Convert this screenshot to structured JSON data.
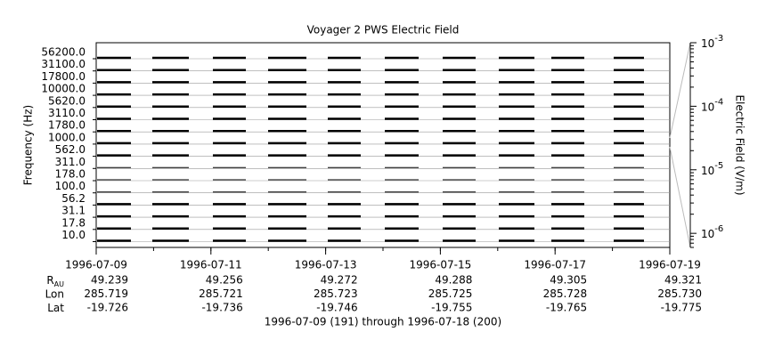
{
  "chart_data": {
    "type": "spectrum-channels",
    "title": "Voyager 2 PWS Electric Field",
    "ylabel": "Frequency (Hz)",
    "categories": [
      "56200.0",
      "31100.0",
      "17800.0",
      "10000.0",
      "5620.0",
      "3110.0",
      "1780.0",
      "1000.0",
      "562.0",
      "311.0",
      "178.0",
      "100.0",
      "56.2",
      "31.1",
      "17.8",
      "10.0"
    ],
    "xlim": [
      "1996-07-09",
      "1996-07-19"
    ],
    "xticks": [
      "1996-07-09",
      "1996-07-11",
      "1996-07-13",
      "1996-07-15",
      "1996-07-17",
      "1996-07-19"
    ],
    "y2label": "Electric Field (V/m)",
    "y2lim": [
      6e-07,
      0.001
    ],
    "y2log": true,
    "y2ticks": [
      {
        "value": 0.001,
        "label": "10",
        "exponent": "-3"
      },
      {
        "value": 0.0001,
        "label": "10",
        "exponent": "-4"
      },
      {
        "value": 1e-05,
        "label": "10",
        "exponent": "-5"
      },
      {
        "value": 1e-06,
        "label": "10",
        "exponent": "-6"
      }
    ],
    "ephemeris": [
      {
        "label": "R",
        "sub": "AU",
        "values": [
          "49.239",
          "49.256",
          "49.272",
          "49.288",
          "49.305",
          "49.321"
        ]
      },
      {
        "label": "Lon",
        "values": [
          "285.719",
          "285.721",
          "285.723",
          "285.725",
          "285.728",
          "285.730"
        ]
      },
      {
        "label": "Lat",
        "values": [
          "-19.726",
          "-19.736",
          "-19.746",
          "-19.755",
          "-19.765",
          "-19.775"
        ]
      }
    ],
    "footer": "1996-07-09 (191) through 1996-07-18 (200)"
  }
}
